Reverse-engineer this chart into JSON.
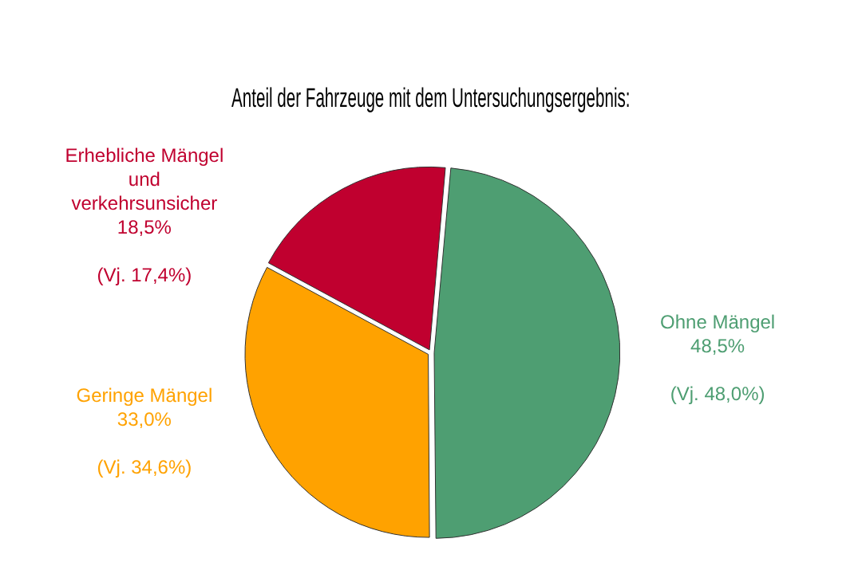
{
  "chart_data": {
    "type": "pie",
    "title": "Anteil der Fahrzeuge mit dem Untersuchungsergebnis:",
    "categories": [
      "Ohne Mängel",
      "Geringe Mängel",
      "Erhebliche Mängel und verkehrsunsicher"
    ],
    "values": [
      48.5,
      33.0,
      18.5
    ],
    "colors": [
      "#4e9e72",
      "#ffa200",
      "#c0002f"
    ],
    "value_labels": [
      "48,5%",
      "33,0%",
      "18,5%"
    ],
    "annotations": [
      {
        "text": "(Vj. 48,0%)",
        "x": "Ohne Mängel"
      },
      {
        "text": "(Vj. 34,6%)",
        "x": "Geringe Mängel"
      },
      {
        "text": "(Vj. 17,4%)",
        "x": "Erhebliche Mängel und verkehrsunsicher"
      }
    ],
    "legend": false
  }
}
